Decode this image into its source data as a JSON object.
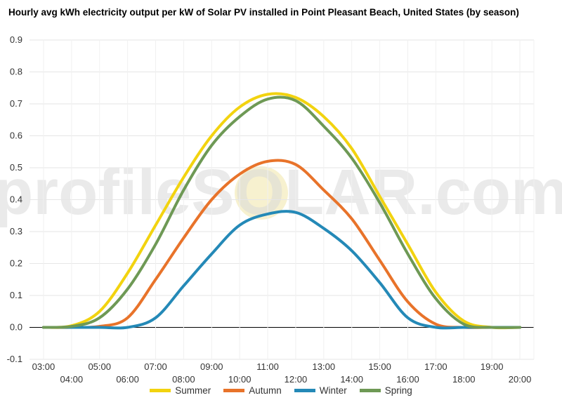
{
  "chart_data": {
    "type": "line",
    "title": "Hourly avg kWh electricity output per kW of Solar PV installed in Point Pleasant Beach, United States (by season)",
    "watermark": "profileSOLAR.com",
    "xlabel": "",
    "ylabel": "",
    "ylim": [
      -0.1,
      0.9
    ],
    "yticks": [
      "-0.1",
      "0.0",
      "0.1",
      "0.2",
      "0.3",
      "0.4",
      "0.5",
      "0.6",
      "0.7",
      "0.8",
      "0.9"
    ],
    "xlim": [
      2.5,
      20.5
    ],
    "x_tick_values": [
      3,
      4,
      5,
      6,
      7,
      8,
      9,
      10,
      11,
      12,
      13,
      14,
      15,
      16,
      17,
      18,
      19,
      20
    ],
    "x_tick_labels": [
      "03:00",
      "04:00",
      "05:00",
      "06:00",
      "07:00",
      "08:00",
      "09:00",
      "10:00",
      "11:00",
      "12:00",
      "13:00",
      "14:00",
      "15:00",
      "16:00",
      "17:00",
      "18:00",
      "19:00",
      "20:00"
    ],
    "grid": true,
    "legend_position": "bottom",
    "x": [
      3,
      4,
      5,
      6,
      7,
      8,
      9,
      10,
      11,
      12,
      13,
      14,
      15,
      16,
      17,
      18,
      19,
      20
    ],
    "series": [
      {
        "name": "Summer",
        "color": "#f2d30f",
        "values": [
          0.0,
          0.005,
          0.05,
          0.17,
          0.32,
          0.47,
          0.6,
          0.69,
          0.73,
          0.72,
          0.66,
          0.56,
          0.41,
          0.26,
          0.11,
          0.02,
          0.0,
          0.0
        ]
      },
      {
        "name": "Autumn",
        "color": "#e8732a",
        "values": [
          0.0,
          0.0,
          0.003,
          0.03,
          0.15,
          0.28,
          0.4,
          0.48,
          0.52,
          0.51,
          0.43,
          0.34,
          0.21,
          0.08,
          0.01,
          0.0,
          0.0,
          0.0
        ]
      },
      {
        "name": "Winter",
        "color": "#2489b7",
        "values": [
          0.0,
          0.0,
          0.0,
          0.0,
          0.03,
          0.13,
          0.23,
          0.32,
          0.355,
          0.36,
          0.31,
          0.24,
          0.14,
          0.03,
          0.0,
          0.0,
          0.0,
          0.0
        ]
      },
      {
        "name": "Spring",
        "color": "#6e9955",
        "values": [
          0.0,
          0.003,
          0.03,
          0.12,
          0.26,
          0.43,
          0.57,
          0.66,
          0.715,
          0.71,
          0.63,
          0.53,
          0.39,
          0.23,
          0.09,
          0.01,
          0.0,
          0.0
        ]
      }
    ]
  }
}
